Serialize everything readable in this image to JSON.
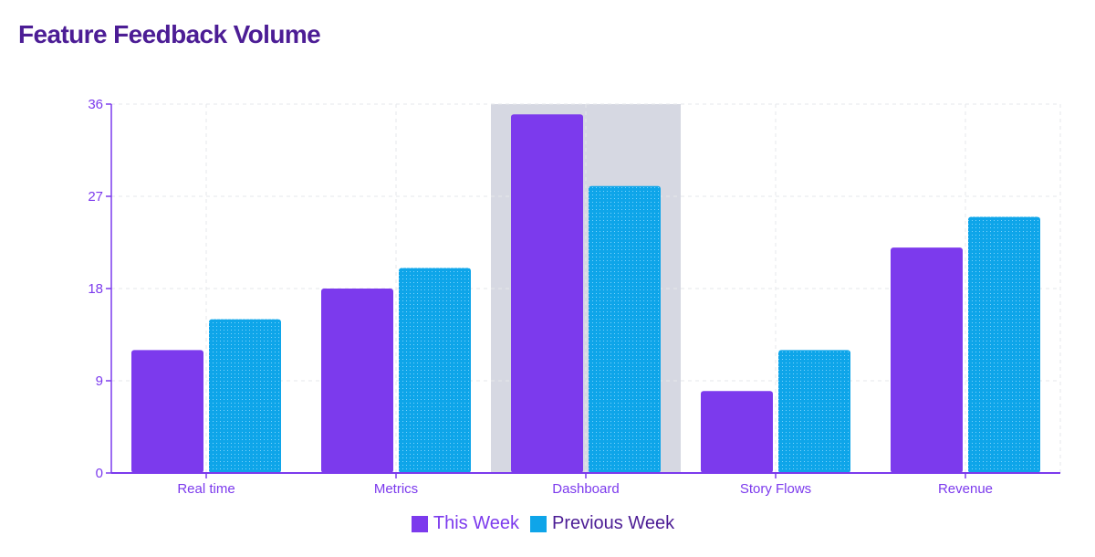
{
  "chart_data": {
    "type": "bar",
    "title": "Feature Feedback Volume",
    "categories": [
      "Real time",
      "Metrics",
      "Dashboard",
      "Story Flows",
      "Revenue"
    ],
    "series": [
      {
        "name": "This Week",
        "values": [
          12,
          18,
          35,
          8,
          22
        ],
        "color": "#7c3aed"
      },
      {
        "name": "Previous Week",
        "values": [
          15,
          20,
          28,
          12,
          25
        ],
        "color": "#0ea5e9"
      }
    ],
    "ylim": [
      0,
      36
    ],
    "yticks": [
      "0",
      "9",
      "18",
      "27",
      "36"
    ],
    "grid": true,
    "legend_position": "bottom",
    "highlighted_category": "Dashboard",
    "axis_color": "#7c3aed",
    "grid_color": "#e5e7eb",
    "highlight_color": "#d6d8e2"
  }
}
